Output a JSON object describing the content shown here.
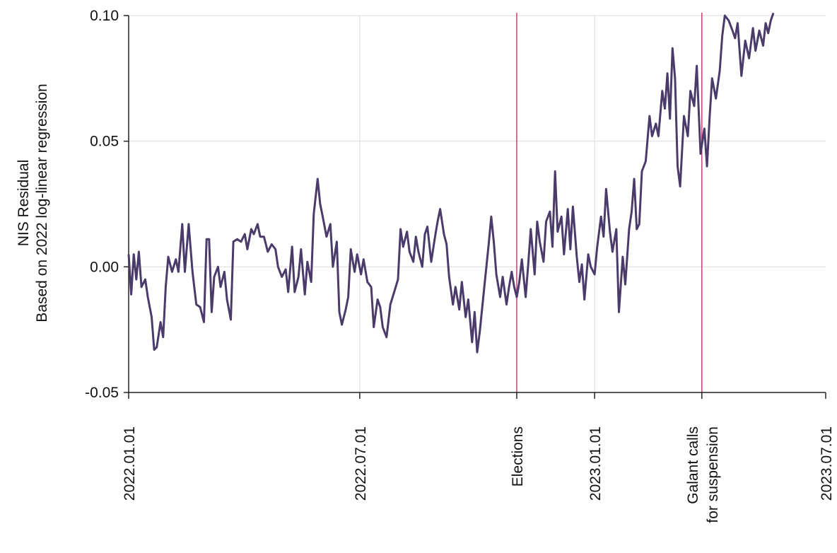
{
  "chart_data": {
    "type": "line",
    "ylabel_lines": [
      "NIS Residual",
      "Based on 2022 log-linear regression"
    ],
    "xlabel": "",
    "ylim": [
      -0.05,
      0.1
    ],
    "yticks": [
      {
        "value": -0.05,
        "label": "-0.05"
      },
      {
        "value": 0.0,
        "label": "0.00"
      },
      {
        "value": 0.05,
        "label": "0.05"
      },
      {
        "value": 0.1,
        "label": "0.10"
      }
    ],
    "xlim": [
      "2022-01-01",
      "2023-07-01"
    ],
    "xticks": [
      {
        "date": "2022-01-01",
        "label": "2022.01.01"
      },
      {
        "date": "2022-07-01",
        "label": "2022.07.01"
      },
      {
        "date": "2023-01-01",
        "label": "2023.01.01"
      },
      {
        "date": "2023-07-01",
        "label": "2023.07.01"
      }
    ],
    "grid": true,
    "line_color": "#4a3b6b",
    "event_color": "#c0306a",
    "events": [
      {
        "date": "2022-11-01",
        "lines": [
          "Elections"
        ]
      },
      {
        "date": "2023-03-26",
        "lines": [
          "Galant  calls",
          "for suspension"
        ]
      }
    ],
    "series": [
      {
        "points": [
          [
            "2022-01-01",
            0.005
          ],
          [
            "2022-01-03",
            -0.011
          ],
          [
            "2022-01-05",
            0.005
          ],
          [
            "2022-01-07",
            -0.005
          ],
          [
            "2022-01-09",
            0.006
          ],
          [
            "2022-01-11",
            -0.008
          ],
          [
            "2022-01-14",
            -0.005
          ],
          [
            "2022-01-16",
            -0.012
          ],
          [
            "2022-01-19",
            -0.02
          ],
          [
            "2022-01-21",
            -0.033
          ],
          [
            "2022-01-23",
            -0.032
          ],
          [
            "2022-01-26",
            -0.022
          ],
          [
            "2022-01-28",
            -0.028
          ],
          [
            "2022-01-30",
            -0.008
          ],
          [
            "2022-02-01",
            0.004
          ],
          [
            "2022-02-04",
            -0.002
          ],
          [
            "2022-02-07",
            0.003
          ],
          [
            "2022-02-09",
            -0.002
          ],
          [
            "2022-02-12",
            0.017
          ],
          [
            "2022-02-14",
            -0.002
          ],
          [
            "2022-02-17",
            0.017
          ],
          [
            "2022-02-20",
            -0.002
          ],
          [
            "2022-02-23",
            -0.015
          ],
          [
            "2022-02-26",
            -0.016
          ],
          [
            "2022-03-01",
            -0.022
          ],
          [
            "2022-03-03",
            0.011
          ],
          [
            "2022-03-05",
            0.011
          ],
          [
            "2022-03-07",
            -0.018
          ],
          [
            "2022-03-09",
            -0.004
          ],
          [
            "2022-03-12",
            0.0
          ],
          [
            "2022-03-14",
            -0.008
          ],
          [
            "2022-03-17",
            -0.002
          ],
          [
            "2022-03-19",
            -0.013
          ],
          [
            "2022-03-22",
            -0.021
          ],
          [
            "2022-03-24",
            0.01
          ],
          [
            "2022-03-27",
            0.011
          ],
          [
            "2022-03-30",
            0.01
          ],
          [
            "2022-04-02",
            0.013
          ],
          [
            "2022-04-04",
            0.007
          ],
          [
            "2022-04-07",
            0.015
          ],
          [
            "2022-04-09",
            0.013
          ],
          [
            "2022-04-12",
            0.017
          ],
          [
            "2022-04-14",
            0.012
          ],
          [
            "2022-04-17",
            0.012
          ],
          [
            "2022-04-20",
            0.006
          ],
          [
            "2022-04-23",
            0.009
          ],
          [
            "2022-04-26",
            0.007
          ],
          [
            "2022-04-28",
            0.0
          ],
          [
            "2022-05-01",
            -0.004
          ],
          [
            "2022-05-04",
            -0.001
          ],
          [
            "2022-05-06",
            -0.01
          ],
          [
            "2022-05-09",
            0.008
          ],
          [
            "2022-05-11",
            -0.01
          ],
          [
            "2022-05-14",
            -0.004
          ],
          [
            "2022-05-16",
            0.007
          ],
          [
            "2022-05-19",
            -0.011
          ],
          [
            "2022-05-21",
            0.002
          ],
          [
            "2022-05-24",
            -0.006
          ],
          [
            "2022-05-26",
            0.021
          ],
          [
            "2022-05-29",
            0.035
          ],
          [
            "2022-05-31",
            0.025
          ],
          [
            "2022-06-02",
            0.02
          ],
          [
            "2022-06-05",
            0.012
          ],
          [
            "2022-06-08",
            0.017
          ],
          [
            "2022-06-10",
            0.0
          ],
          [
            "2022-06-13",
            0.01
          ],
          [
            "2022-06-15",
            -0.018
          ],
          [
            "2022-06-17",
            -0.023
          ],
          [
            "2022-06-20",
            -0.017
          ],
          [
            "2022-06-22",
            -0.012
          ],
          [
            "2022-06-24",
            0.007
          ],
          [
            "2022-06-27",
            -0.002
          ],
          [
            "2022-06-29",
            0.005
          ],
          [
            "2022-07-02",
            -0.003
          ],
          [
            "2022-07-04",
            0.003
          ],
          [
            "2022-07-07",
            -0.006
          ],
          [
            "2022-07-10",
            -0.008
          ],
          [
            "2022-07-12",
            -0.024
          ],
          [
            "2022-07-15",
            -0.013
          ],
          [
            "2022-07-17",
            -0.016
          ],
          [
            "2022-07-19",
            -0.024
          ],
          [
            "2022-07-22",
            -0.028
          ],
          [
            "2022-07-25",
            -0.015
          ],
          [
            "2022-07-28",
            -0.01
          ],
          [
            "2022-07-31",
            -0.005
          ],
          [
            "2022-08-02",
            0.015
          ],
          [
            "2022-08-04",
            0.008
          ],
          [
            "2022-08-07",
            0.014
          ],
          [
            "2022-08-09",
            0.006
          ],
          [
            "2022-08-12",
            0.002
          ],
          [
            "2022-08-14",
            0.012
          ],
          [
            "2022-08-16",
            0.006
          ],
          [
            "2022-08-19",
            0.0
          ],
          [
            "2022-08-21",
            0.013
          ],
          [
            "2022-08-23",
            0.016
          ],
          [
            "2022-08-26",
            0.002
          ],
          [
            "2022-08-29",
            0.012
          ],
          [
            "2022-08-31",
            0.018
          ],
          [
            "2022-09-02",
            0.023
          ],
          [
            "2022-09-05",
            0.013
          ],
          [
            "2022-09-07",
            0.009
          ],
          [
            "2022-09-09",
            -0.004
          ],
          [
            "2022-09-12",
            -0.015
          ],
          [
            "2022-09-14",
            -0.008
          ],
          [
            "2022-09-17",
            -0.017
          ],
          [
            "2022-09-19",
            -0.006
          ],
          [
            "2022-09-22",
            -0.02
          ],
          [
            "2022-09-24",
            -0.013
          ],
          [
            "2022-09-27",
            -0.03
          ],
          [
            "2022-09-29",
            -0.018
          ],
          [
            "2022-10-01",
            -0.034
          ],
          [
            "2022-10-03",
            -0.026
          ],
          [
            "2022-10-05",
            -0.016
          ],
          [
            "2022-10-07",
            -0.006
          ],
          [
            "2022-10-10",
            0.009
          ],
          [
            "2022-10-12",
            0.02
          ],
          [
            "2022-10-14",
            0.01
          ],
          [
            "2022-10-16",
            -0.003
          ],
          [
            "2022-10-19",
            -0.012
          ],
          [
            "2022-10-21",
            -0.004
          ],
          [
            "2022-10-24",
            -0.015
          ],
          [
            "2022-10-26",
            -0.008
          ],
          [
            "2022-10-28",
            -0.002
          ],
          [
            "2022-10-30",
            -0.008
          ],
          [
            "2022-11-01",
            -0.012
          ],
          [
            "2022-11-03",
            -0.006
          ],
          [
            "2022-11-05",
            0.003
          ],
          [
            "2022-11-08",
            -0.012
          ],
          [
            "2022-11-10",
            0.001
          ],
          [
            "2022-11-12",
            0.015
          ],
          [
            "2022-11-15",
            -0.003
          ],
          [
            "2022-11-17",
            0.018
          ],
          [
            "2022-11-19",
            0.01
          ],
          [
            "2022-11-22",
            0.002
          ],
          [
            "2022-11-24",
            0.018
          ],
          [
            "2022-11-27",
            0.022
          ],
          [
            "2022-11-29",
            0.008
          ],
          [
            "2022-12-01",
            0.038
          ],
          [
            "2022-12-03",
            0.014
          ],
          [
            "2022-12-06",
            0.02
          ],
          [
            "2022-12-08",
            0.005
          ],
          [
            "2022-12-11",
            0.023
          ],
          [
            "2022-12-13",
            0.007
          ],
          [
            "2022-12-15",
            0.024
          ],
          [
            "2022-12-18",
            0.004
          ],
          [
            "2022-12-20",
            -0.006
          ],
          [
            "2022-12-22",
            0.001
          ],
          [
            "2022-12-24",
            -0.013
          ],
          [
            "2022-12-27",
            0.005
          ],
          [
            "2022-12-29",
            0.0
          ],
          [
            "2023-01-01",
            -0.003
          ],
          [
            "2023-01-03",
            0.008
          ],
          [
            "2023-01-06",
            0.02
          ],
          [
            "2023-01-08",
            0.012
          ],
          [
            "2023-01-10",
            0.031
          ],
          [
            "2023-01-13",
            0.014
          ],
          [
            "2023-01-15",
            0.006
          ],
          [
            "2023-01-18",
            0.015
          ],
          [
            "2023-01-20",
            -0.018
          ],
          [
            "2023-01-23",
            0.004
          ],
          [
            "2023-01-25",
            -0.007
          ],
          [
            "2023-01-28",
            0.015
          ],
          [
            "2023-01-30",
            0.022
          ],
          [
            "2023-02-01",
            0.035
          ],
          [
            "2023-02-03",
            0.015
          ],
          [
            "2023-02-05",
            0.017
          ],
          [
            "2023-02-07",
            0.038
          ],
          [
            "2023-02-10",
            0.042
          ],
          [
            "2023-02-13",
            0.06
          ],
          [
            "2023-02-15",
            0.052
          ],
          [
            "2023-02-18",
            0.057
          ],
          [
            "2023-02-20",
            0.052
          ],
          [
            "2023-02-23",
            0.07
          ],
          [
            "2023-02-25",
            0.063
          ],
          [
            "2023-02-27",
            0.077
          ],
          [
            "2023-03-01",
            0.059
          ],
          [
            "2023-03-03",
            0.087
          ],
          [
            "2023-03-05",
            0.075
          ],
          [
            "2023-03-07",
            0.04
          ],
          [
            "2023-03-09",
            0.032
          ],
          [
            "2023-03-12",
            0.06
          ],
          [
            "2023-03-15",
            0.052
          ],
          [
            "2023-03-17",
            0.07
          ],
          [
            "2023-03-20",
            0.064
          ],
          [
            "2023-03-22",
            0.08
          ],
          [
            "2023-03-25",
            0.045
          ],
          [
            "2023-03-28",
            0.055
          ],
          [
            "2023-03-30",
            0.04
          ],
          [
            "2023-04-01",
            0.059
          ],
          [
            "2023-04-03",
            0.075
          ],
          [
            "2023-04-06",
            0.067
          ],
          [
            "2023-04-09",
            0.078
          ],
          [
            "2023-04-11",
            0.092
          ],
          [
            "2023-04-13",
            0.1
          ],
          [
            "2023-04-16",
            0.098
          ],
          [
            "2023-04-19",
            0.094
          ],
          [
            "2023-04-21",
            0.091
          ],
          [
            "2023-04-23",
            0.097
          ],
          [
            "2023-04-26",
            0.076
          ],
          [
            "2023-04-29",
            0.09
          ],
          [
            "2023-05-02",
            0.083
          ],
          [
            "2023-05-05",
            0.095
          ],
          [
            "2023-05-07",
            0.086
          ],
          [
            "2023-05-10",
            0.094
          ],
          [
            "2023-05-13",
            0.088
          ],
          [
            "2023-05-15",
            0.097
          ],
          [
            "2023-05-17",
            0.093
          ],
          [
            "2023-05-19",
            0.098
          ],
          [
            "2023-05-21",
            0.101
          ]
        ]
      }
    ]
  }
}
